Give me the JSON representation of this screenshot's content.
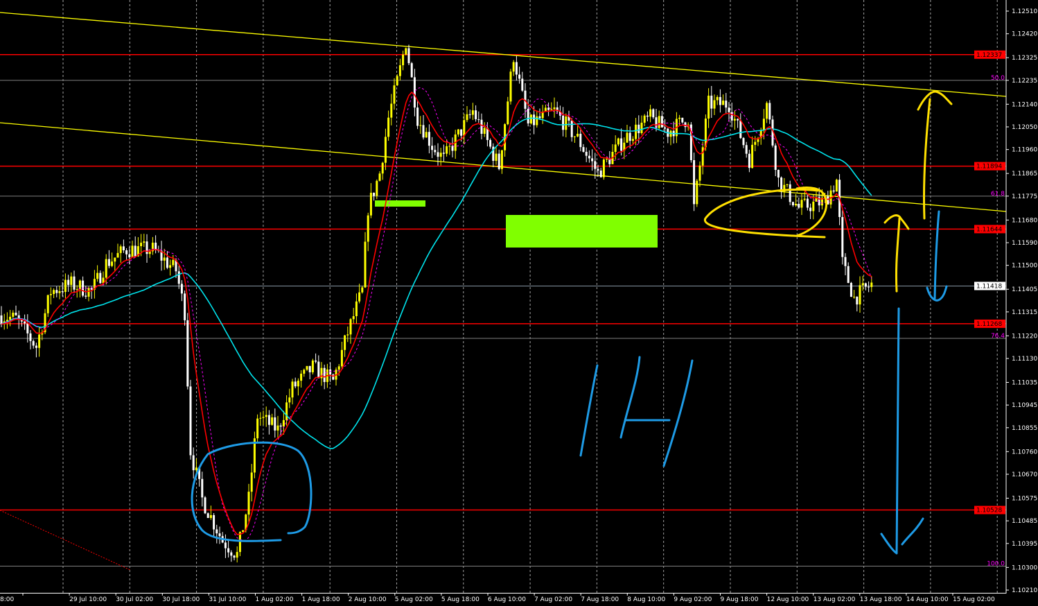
{
  "chart_data": {
    "type": "candlestick",
    "timeframe_note": "",
    "colors": {
      "background": "#000000",
      "bull_candle": "#ffff00",
      "bear_candle": "#ffffff",
      "grid": "#c0c0c0",
      "axis_text": "#ffffff",
      "level_line": "#ff0000",
      "fib_label": "#ff00ff",
      "trendline": "#ffff00",
      "ma_fast": "#ff0000",
      "ma_slow": "#00e5ee",
      "ma_dashed": "#ff00ff",
      "zone": "#80ff00",
      "annotation_blue": "#1e9be6",
      "annotation_yellow": "#ffe000"
    },
    "ylim": [
      1.1021,
      1.1251
    ],
    "y_ticks": [
      "1.12510",
      "1.12420",
      "1.12325",
      "1.12235",
      "1.12140",
      "1.12050",
      "1.11960",
      "1.11865",
      "1.11775",
      "1.11680",
      "1.11590",
      "1.11500",
      "1.11405",
      "1.11315",
      "1.11220",
      "1.11130",
      "1.11035",
      "1.10945",
      "1.10855",
      "1.10760",
      "1.10670",
      "1.10575",
      "1.10485",
      "1.10395",
      "1.10300",
      "1.10210"
    ],
    "x_ticks": [
      "8:00",
      "29 Jul 10:00",
      "30 Jul 02:00",
      "30 Jul 18:00",
      "31 Jul 10:00",
      "1 Aug 02:00",
      "1 Aug 18:00",
      "2 Aug 10:00",
      "5 Aug 02:00",
      "5 Aug 18:00",
      "6 Aug 10:00",
      "7 Aug 02:00",
      "7 Aug 18:00",
      "8 Aug 10:00",
      "9 Aug 02:00",
      "9 Aug 18:00",
      "12 Aug 10:00",
      "13 Aug 02:00",
      "13 Aug 18:00",
      "14 Aug 10:00",
      "15 Aug 02:00"
    ],
    "current_price": "1.11418",
    "levels": [
      "1.12337",
      "1.11894",
      "1.11644",
      "1.11268",
      "1.10528"
    ],
    "fib_levels": [
      {
        "label": "50.0",
        "price": 1.12235
      },
      {
        "label": "61.8",
        "price": 1.11775
      },
      {
        "label": "76.4",
        "price": 1.1121
      },
      {
        "label": "100.0",
        "price": 1.10305
      }
    ],
    "close_path": {
      "bar": [
        0,
        5,
        12,
        17,
        24,
        31,
        36,
        43,
        52,
        60,
        63,
        65,
        69,
        76,
        81,
        85,
        88,
        95,
        100,
        107,
        114,
        119,
        124,
        126,
        130,
        133,
        137,
        139,
        143,
        148,
        152,
        162,
        171,
        176,
        181,
        190,
        198,
        205,
        214,
        223,
        229,
        236,
        238,
        243,
        250,
        257,
        263,
        267,
        274,
        283,
        287,
        289,
        293,
        299
      ],
      "price": [
        1.11301,
        1.11287,
        1.11177,
        1.11397,
        1.11425,
        1.11397,
        1.11508,
        1.11563,
        1.11563,
        1.1148,
        1.11315,
        1.10764,
        1.10571,
        1.10406,
        1.10351,
        1.10571,
        1.10902,
        1.10847,
        1.11012,
        1.11094,
        1.11039,
        1.11232,
        1.11397,
        1.11728,
        1.11866,
        1.12086,
        1.12279,
        1.12389,
        1.12086,
        1.11976,
        1.11921,
        1.12113,
        1.11893,
        1.12334,
        1.12058,
        1.12113,
        1.12003,
        1.11866,
        1.12003,
        1.12086,
        1.12031,
        1.12086,
        1.11728,
        1.12141,
        1.12141,
        1.11921,
        1.12141,
        1.11838,
        1.11728,
        1.11755,
        1.11838,
        1.11508,
        1.1137,
        1.11425
      ]
    }
  }
}
